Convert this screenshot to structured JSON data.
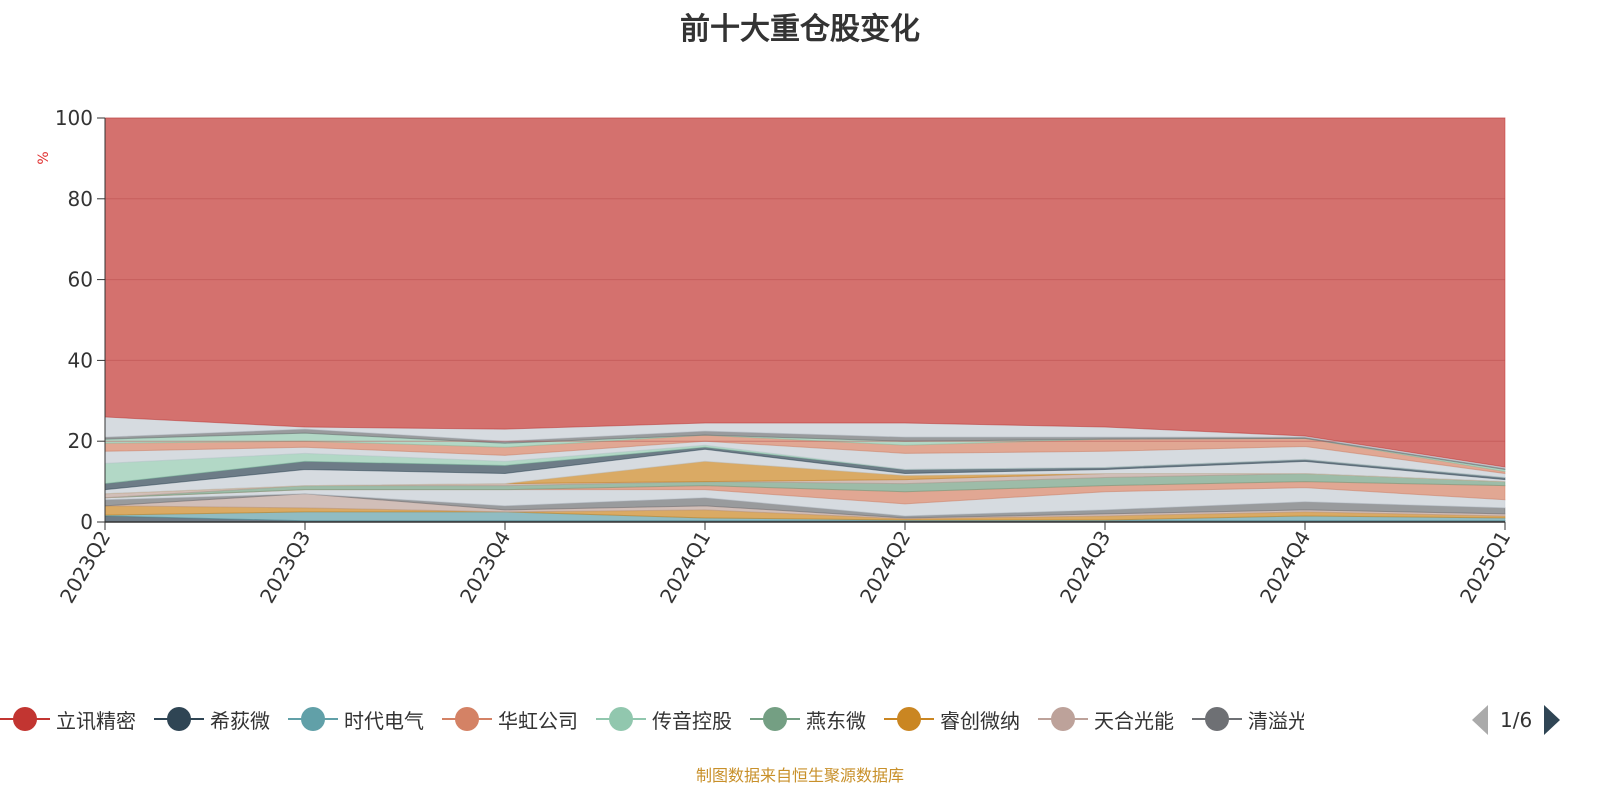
{
  "title": "前十大重仓股变化",
  "legend": {
    "items": [
      {
        "name": "立讯精密",
        "color": "#c23531"
      },
      {
        "name": "希荻微",
        "color": "#2f4554"
      },
      {
        "name": "时代电气",
        "color": "#61a0a8"
      },
      {
        "name": "华虹公司",
        "color": "#d48265"
      },
      {
        "name": "传音控股",
        "color": "#91c7ae"
      },
      {
        "name": "燕东微",
        "color": "#749f83"
      },
      {
        "name": "睿创微纳",
        "color": "#ca8622"
      },
      {
        "name": "天合光能",
        "color": "#bda29a"
      },
      {
        "name": "清溢光电",
        "color": "#6e7074"
      }
    ],
    "page": "1/6"
  },
  "footer": "制图数据来自恒生聚源数据库",
  "chart_data": {
    "type": "area",
    "stacked": true,
    "title": "前十大重仓股变化",
    "ylabel": "%",
    "ylim": [
      0,
      100
    ],
    "yticks": [
      "0",
      "20",
      "40",
      "60",
      "80",
      "100"
    ],
    "categories": [
      "2023Q2",
      "2023Q3",
      "2023Q4",
      "2024Q1",
      "2024Q2",
      "2024Q3",
      "2024Q4",
      "2025Q1"
    ],
    "series": [
      {
        "name": "希荻微",
        "color": "#2f4554",
        "values": [
          1.5,
          0.3,
          0.3,
          0.3,
          0.3,
          0.3,
          0.3,
          0.3
        ]
      },
      {
        "name": "时代电气",
        "color": "#61a0a8",
        "values": [
          0.2,
          2.2,
          2.2,
          0.7,
          0.2,
          0.2,
          1.2,
          0.7
        ]
      },
      {
        "name": "睿创微纳",
        "color": "#ca8622",
        "values": [
          2.3,
          1,
          0,
          2,
          0.3,
          1,
          1,
          0.5
        ]
      },
      {
        "name": "天合光能",
        "color": "#bda29a",
        "values": [
          0,
          3.5,
          0.5,
          1,
          0.2,
          0.5,
          0.5,
          0.5
        ]
      },
      {
        "name": "清溢光电",
        "color": "#6e7074",
        "values": [
          1.5,
          0,
          1,
          2,
          0.5,
          1,
          2,
          1.5
        ]
      },
      {
        "color": "#c4ccd3",
        "values": [
          0.5,
          1,
          4,
          2,
          3,
          4.5,
          3.5,
          2
        ]
      },
      {
        "name": "华虹公司",
        "color": "#d48265",
        "values": [
          0,
          0,
          0,
          1,
          3,
          1.5,
          1.5,
          3.5
        ]
      },
      {
        "name": "燕东微",
        "color": "#749f83",
        "values": [
          0,
          1,
          1,
          1,
          2,
          2,
          2,
          1
        ]
      },
      {
        "color": "#bda29a",
        "values": [
          1,
          0,
          0.5,
          0,
          1,
          1,
          0,
          0
        ]
      },
      {
        "color": "#ca8622",
        "values": [
          0,
          0,
          0,
          5,
          1,
          0,
          0,
          0
        ]
      },
      {
        "color": "#c4ccd3",
        "values": [
          1,
          4,
          2.5,
          3,
          0.5,
          1,
          3,
          0.5
        ]
      },
      {
        "color": "#2f4554",
        "values": [
          1.5,
          2,
          2,
          0.5,
          1,
          0.5,
          0.5,
          0.5
        ]
      },
      {
        "name": "传音控股",
        "color": "#91c7ae",
        "values": [
          5,
          2,
          1,
          0.5,
          0,
          0,
          0,
          0
        ]
      },
      {
        "color": "#c4ccd3",
        "values": [
          3,
          1.5,
          1.5,
          1,
          4,
          4,
          3.2,
          1
        ]
      },
      {
        "color": "#d48265",
        "values": [
          2,
          1.5,
          2,
          1.5,
          2,
          3,
          2,
          0.5
        ]
      },
      {
        "color": "#91c7ae",
        "values": [
          1,
          2,
          1,
          0,
          1,
          0,
          0,
          0.5
        ]
      },
      {
        "color": "#6e7074",
        "values": [
          0.5,
          1,
          0.5,
          1,
          1,
          0.5,
          0.3,
          0.3
        ]
      },
      {
        "color": "#c4ccd3",
        "values": [
          5,
          0.5,
          3,
          2,
          3.5,
          2.5,
          0.3,
          0.3
        ]
      },
      {
        "name": "立讯精密",
        "color": "#c23531",
        "values": [
          74,
          76.5,
          77,
          75.5,
          75.5,
          76.5,
          78.7,
          86.4
        ]
      }
    ]
  }
}
